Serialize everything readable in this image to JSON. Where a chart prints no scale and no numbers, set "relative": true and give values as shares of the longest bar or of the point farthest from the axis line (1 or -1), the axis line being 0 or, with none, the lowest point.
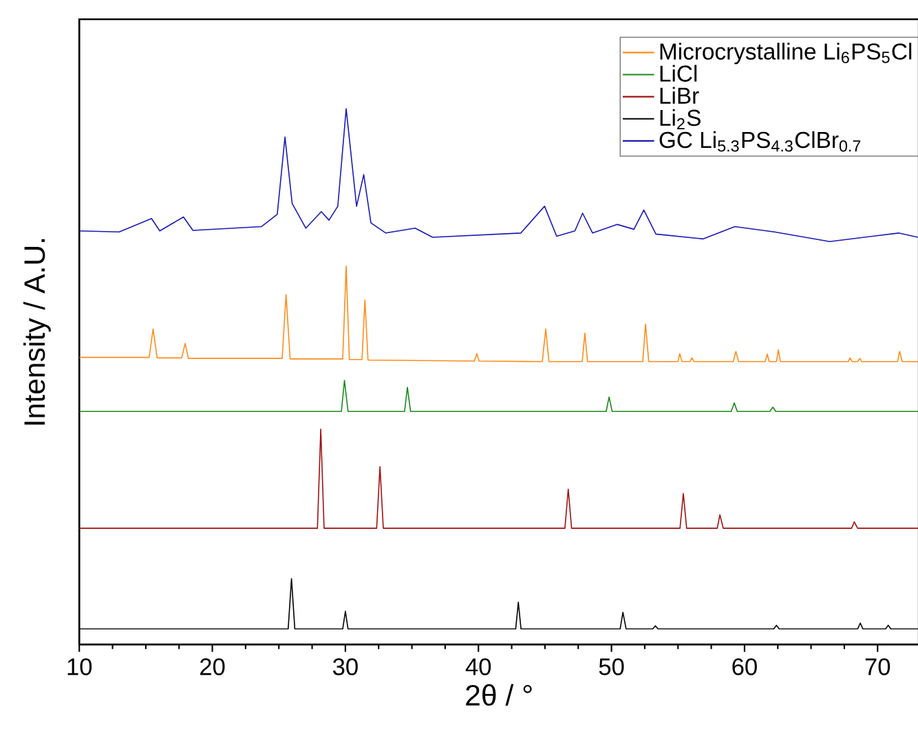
{
  "chart_data": {
    "type": "line",
    "relative": true,
    "xlabel": "2θ / °",
    "ylabel": "Intensity / A.U.",
    "xlim": [
      10,
      73.1
    ],
    "xticks": [
      10,
      20,
      30,
      40,
      50,
      60,
      70
    ],
    "legend": "top right",
    "grid": false,
    "marker": "none",
    "line_style": "solid",
    "series": [
      {
        "name": "Microcrystalline Li$_{6}$PS$_{5}$Cl",
        "color": "#ff8c1a",
        "x": [
          10,
          15.25,
          15.55,
          15.85,
          17.7,
          17.96,
          18.2,
          25.25,
          25.54,
          25.85,
          29.8,
          30.06,
          30.3,
          31.25,
          31.47,
          31.7,
          39.7,
          39.88,
          40.05,
          44.8,
          45.06,
          45.3,
          47.8,
          48.0,
          48.2,
          52.35,
          52.56,
          52.8,
          55.0,
          55.13,
          55.3,
          55.9,
          56.04,
          56.2,
          59.15,
          59.35,
          59.55,
          61.55,
          61.71,
          61.85,
          62.4,
          62.54,
          62.7,
          67.8,
          67.93,
          68.1,
          68.5,
          68.67,
          68.8,
          71.5,
          71.66,
          71.85,
          73.1
        ],
        "values": [
          0.536,
          0.536,
          0.589,
          0.535,
          0.535,
          0.562,
          0.534,
          0.534,
          0.653,
          0.533,
          0.533,
          0.706,
          0.532,
          0.532,
          0.643,
          0.531,
          0.529,
          0.543,
          0.529,
          0.528,
          0.589,
          0.528,
          0.528,
          0.581,
          0.528,
          0.528,
          0.598,
          0.528,
          0.528,
          0.543,
          0.528,
          0.528,
          0.535,
          0.528,
          0.528,
          0.547,
          0.528,
          0.528,
          0.542,
          0.528,
          0.528,
          0.55,
          0.528,
          0.528,
          0.535,
          0.528,
          0.528,
          0.534,
          0.528,
          0.528,
          0.547,
          0.528,
          0.528
        ]
      },
      {
        "name": "LiCl",
        "color": "#1a8a1a",
        "x": [
          10,
          29.7,
          29.93,
          30.2,
          34.45,
          34.66,
          34.9,
          49.6,
          49.82,
          50.05,
          59.0,
          59.23,
          59.45,
          61.9,
          62.13,
          62.35,
          73.1
        ],
        "values": [
          0.435,
          0.435,
          0.493,
          0.435,
          0.435,
          0.48,
          0.435,
          0.435,
          0.462,
          0.435,
          0.435,
          0.451,
          0.435,
          0.435,
          0.443,
          0.435,
          0.435
        ]
      },
      {
        "name": "LiBr",
        "color": "#a01010",
        "x": [
          10,
          27.9,
          28.15,
          28.4,
          32.35,
          32.6,
          32.85,
          46.5,
          46.75,
          47.0,
          55.15,
          55.4,
          55.65,
          57.95,
          58.15,
          58.4,
          68.05,
          68.25,
          68.5,
          73.1
        ],
        "values": [
          0.217,
          0.217,
          0.402,
          0.217,
          0.217,
          0.332,
          0.217,
          0.217,
          0.29,
          0.217,
          0.217,
          0.282,
          0.217,
          0.217,
          0.242,
          0.217,
          0.217,
          0.229,
          0.217,
          0.217
        ]
      },
      {
        "name": "Li$_{2}$S",
        "color": "#000000",
        "x": [
          10,
          25.7,
          25.95,
          26.2,
          29.8,
          30.0,
          30.2,
          42.8,
          43.0,
          43.2,
          50.65,
          50.86,
          51.1,
          53.1,
          53.3,
          53.5,
          62.2,
          62.4,
          62.6,
          68.5,
          68.7,
          68.9,
          70.6,
          70.8,
          71.0,
          73.1
        ],
        "values": [
          0.029,
          0.029,
          0.123,
          0.029,
          0.029,
          0.062,
          0.029,
          0.029,
          0.079,
          0.029,
          0.029,
          0.06,
          0.029,
          0.029,
          0.035,
          0.029,
          0.029,
          0.036,
          0.029,
          0.029,
          0.04,
          0.029,
          0.029,
          0.036,
          0.029,
          0.029
        ]
      },
      {
        "name": "GC Li$_{5.3}$PS$_{4.3}$ClBr$_{0.7}$",
        "color": "#1a1ab4",
        "x": [
          10,
          13.0,
          15.43,
          16.05,
          17.83,
          18.54,
          23.7,
          24.88,
          25.46,
          26.0,
          27.03,
          28.19,
          28.77,
          29.43,
          30.06,
          30.84,
          31.38,
          31.92,
          33.04,
          35.24,
          36.56,
          43.19,
          44.97,
          45.88,
          47.25,
          47.83,
          48.58,
          50.44,
          51.69,
          52.43,
          53.34,
          56.87,
          59.27,
          62.25,
          66.4,
          71.58,
          73.03
        ],
        "values": [
          0.772,
          0.77,
          0.795,
          0.772,
          0.798,
          0.773,
          0.78,
          0.803,
          0.947,
          0.823,
          0.777,
          0.808,
          0.792,
          0.818,
          1.0,
          0.818,
          0.877,
          0.787,
          0.768,
          0.777,
          0.76,
          0.768,
          0.818,
          0.762,
          0.772,
          0.805,
          0.768,
          0.784,
          0.775,
          0.811,
          0.766,
          0.757,
          0.78,
          0.77,
          0.752,
          0.768,
          0.76
        ]
      }
    ]
  }
}
